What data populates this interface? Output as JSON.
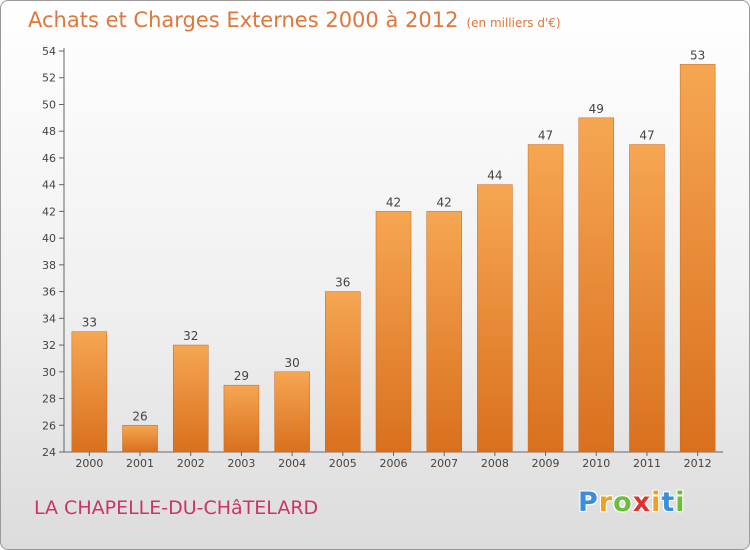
{
  "title": "Achats et Charges Externes 2000 à 2012",
  "subtitle": "(en milliers d'€)",
  "commune": "LA CHAPELLE-DU-CHâTELARD",
  "logo": {
    "letters": [
      "P",
      "r",
      "o",
      "x",
      "i",
      "t",
      "i"
    ],
    "colors": [
      "#3a8fd8",
      "#f0a020",
      "#6cbf3a",
      "#e03030",
      "#f0a020",
      "#3a8fd8",
      "#6cbf3a"
    ]
  },
  "colors": {
    "bar_top": "#f6a652",
    "bar_bottom": "#d9701e",
    "title": "#e0773a",
    "commune": "#cc3366"
  },
  "chart_data": {
    "type": "bar",
    "categories": [
      "2000",
      "2001",
      "2002",
      "2003",
      "2004",
      "2005",
      "2006",
      "2007",
      "2008",
      "2009",
      "2010",
      "2011",
      "2012"
    ],
    "values": [
      33,
      26,
      32,
      29,
      30,
      36,
      42,
      42,
      44,
      47,
      49,
      47,
      53
    ],
    "ylim": [
      24,
      54
    ],
    "yticks": [
      24,
      26,
      28,
      30,
      32,
      34,
      36,
      38,
      40,
      42,
      44,
      46,
      48,
      50,
      52,
      54
    ],
    "grid": false,
    "xlabel": "",
    "ylabel": ""
  }
}
